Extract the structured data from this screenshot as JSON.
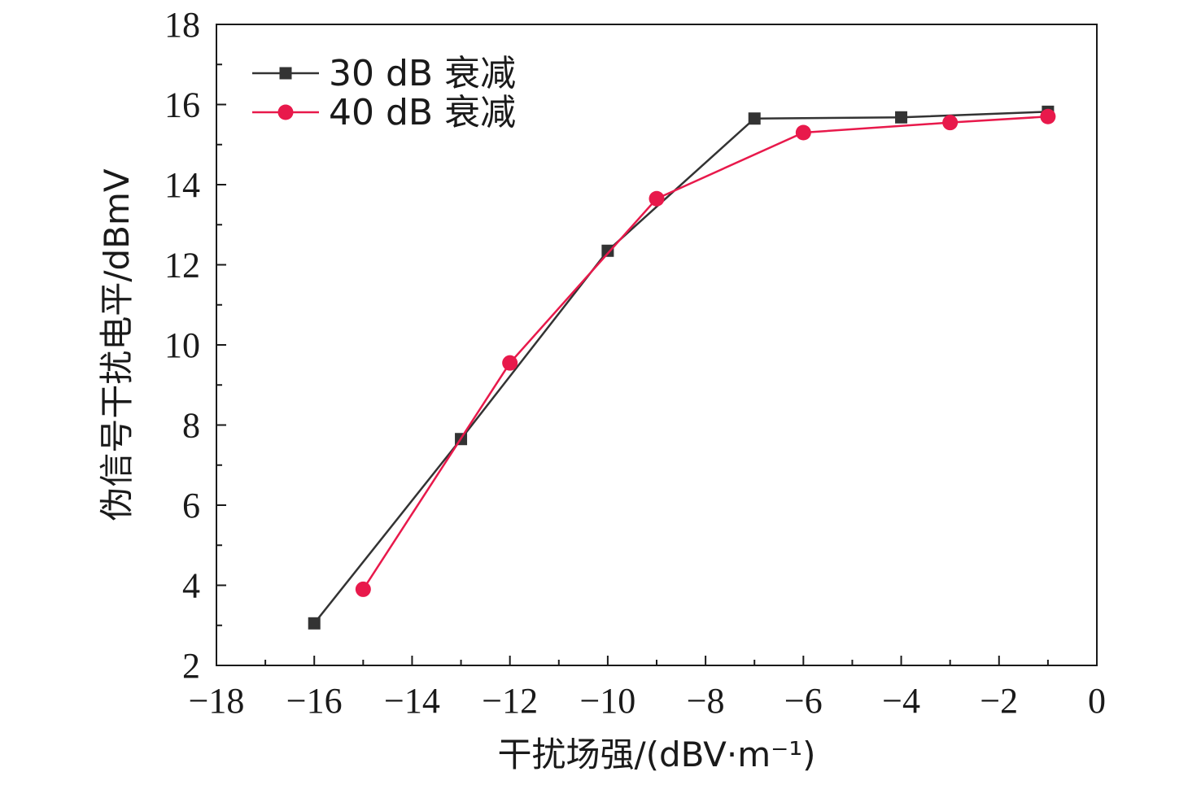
{
  "chart_data": {
    "type": "line",
    "xlabel": "干扰场强/(dBV·m⁻¹)",
    "ylabel": "伪信号干扰电平/dBmV",
    "xlim": [
      -18,
      0
    ],
    "ylim": [
      2,
      18
    ],
    "xticks": [
      -18,
      -16,
      -14,
      -12,
      -10,
      -8,
      -6,
      -4,
      -2,
      0
    ],
    "yticks": [
      2,
      4,
      6,
      8,
      10,
      12,
      14,
      16,
      18
    ],
    "xtick_labels": [
      "−18",
      "−16",
      "−14",
      "−12",
      "−10",
      "−8",
      "−6",
      "−4",
      "−2",
      "0"
    ],
    "ytick_labels": [
      "2",
      "4",
      "6",
      "8",
      "10",
      "12",
      "14",
      "16",
      "18"
    ],
    "grid": false,
    "legend_position": "top-left",
    "series": [
      {
        "name": "30 dB 衰减",
        "color": "#333333",
        "marker": "square",
        "x": [
          -16,
          -13,
          -10,
          -7,
          -4,
          -1
        ],
        "y": [
          3.05,
          7.65,
          12.35,
          15.65,
          15.68,
          15.82
        ]
      },
      {
        "name": "40 dB 衰减",
        "color": "#e8194b",
        "marker": "circle",
        "x": [
          -15,
          -12,
          -9,
          -6,
          -3,
          -1
        ],
        "y": [
          3.9,
          9.55,
          13.65,
          15.3,
          15.55,
          15.7
        ]
      }
    ]
  }
}
